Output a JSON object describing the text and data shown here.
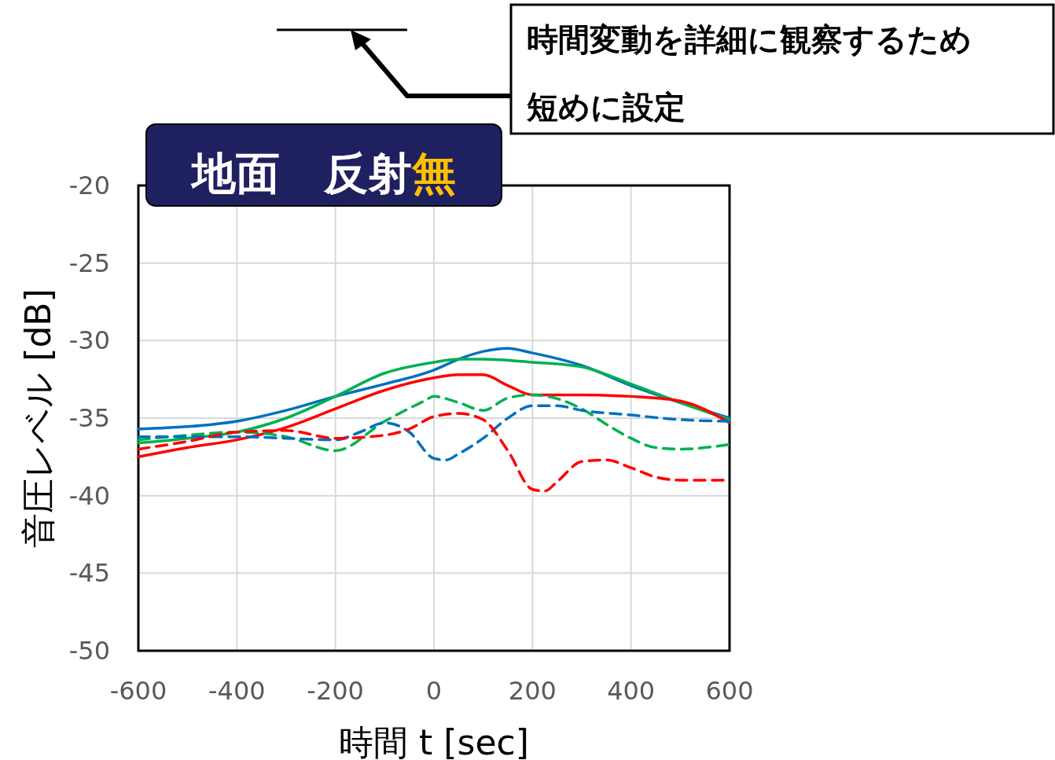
{
  "chart_data": {
    "type": "line",
    "title": "地面　反射無",
    "xlabel": "時間 t [sec]",
    "ylabel": "音圧レベル [dB]",
    "xlim": [
      -600,
      600
    ],
    "xticks": [
      -600,
      -400,
      -200,
      0,
      200,
      400,
      600
    ],
    "ylim": [
      -50,
      -20
    ],
    "yticks": [
      -50,
      -45,
      -40,
      -35,
      -30,
      -25,
      -20
    ],
    "grid": true,
    "marker": "none",
    "annotations": [
      "時間変動を詳細に観察するため",
      "短めに設定"
    ],
    "series": [
      {
        "color": "#0070c0",
        "line_style": "solid",
        "x": [
          -600,
          -400,
          -300,
          -200,
          -100,
          0,
          50,
          100,
          150,
          200,
          300,
          400,
          500,
          600
        ],
        "values": [
          -35.7,
          -35.2,
          -34.5,
          -33.6,
          -32.8,
          -31.9,
          -31.2,
          -30.7,
          -30.5,
          -30.8,
          -31.6,
          -32.9,
          -34.0,
          -35.0
        ]
      },
      {
        "color": "#00b050",
        "line_style": "solid",
        "x": [
          -600,
          -500,
          -400,
          -300,
          -200,
          -100,
          0,
          50,
          100,
          200,
          300,
          400,
          500,
          600
        ],
        "values": [
          -36.6,
          -36.3,
          -35.9,
          -35.0,
          -33.6,
          -32.1,
          -31.4,
          -31.2,
          -31.2,
          -31.4,
          -31.7,
          -32.8,
          -34.0,
          -35.1
        ]
      },
      {
        "color": "#ff0000",
        "line_style": "solid",
        "x": [
          -600,
          -500,
          -400,
          -300,
          -200,
          -100,
          0,
          50,
          100,
          150,
          200,
          300,
          400,
          500,
          600
        ],
        "values": [
          -37.5,
          -36.9,
          -36.4,
          -35.6,
          -34.4,
          -33.2,
          -32.4,
          -32.2,
          -32.2,
          -32.9,
          -33.5,
          -33.5,
          -33.6,
          -33.9,
          -35.3
        ]
      },
      {
        "color": "#00b050",
        "line_style": "dashed",
        "x": [
          -600,
          -500,
          -400,
          -300,
          -200,
          -100,
          -20,
          0,
          50,
          100,
          150,
          200,
          300,
          350,
          400,
          450,
          500,
          600
        ],
        "values": [
          -36.4,
          -36.1,
          -35.9,
          -36.2,
          -37.1,
          -35.2,
          -33.9,
          -33.6,
          -34.0,
          -34.5,
          -33.7,
          -33.5,
          -34.4,
          -35.4,
          -36.3,
          -36.9,
          -37.0,
          -36.7
        ]
      },
      {
        "color": "#0070c0",
        "line_style": "dashed",
        "x": [
          -600,
          -400,
          -300,
          -200,
          -150,
          -100,
          -50,
          0,
          25,
          50,
          100,
          150,
          200,
          250,
          300,
          400,
          500,
          600
        ],
        "values": [
          -36.2,
          -36.2,
          -36.3,
          -36.4,
          -35.9,
          -35.3,
          -35.9,
          -37.6,
          -37.7,
          -37.3,
          -36.3,
          -35.0,
          -34.2,
          -34.2,
          -34.5,
          -34.8,
          -35.1,
          -35.2
        ]
      },
      {
        "color": "#ff0000",
        "line_style": "dashed",
        "x": [
          -600,
          -500,
          -400,
          -300,
          -200,
          -100,
          -50,
          0,
          50,
          100,
          150,
          200,
          225,
          250,
          300,
          350,
          400,
          450,
          500,
          600
        ],
        "values": [
          -37.0,
          -36.5,
          -35.9,
          -35.8,
          -36.3,
          -36.1,
          -35.7,
          -34.9,
          -34.7,
          -35.1,
          -37.1,
          -39.6,
          -39.7,
          -39.1,
          -37.8,
          -37.7,
          -38.2,
          -38.8,
          -39.0,
          -39.0
        ]
      }
    ]
  }
}
